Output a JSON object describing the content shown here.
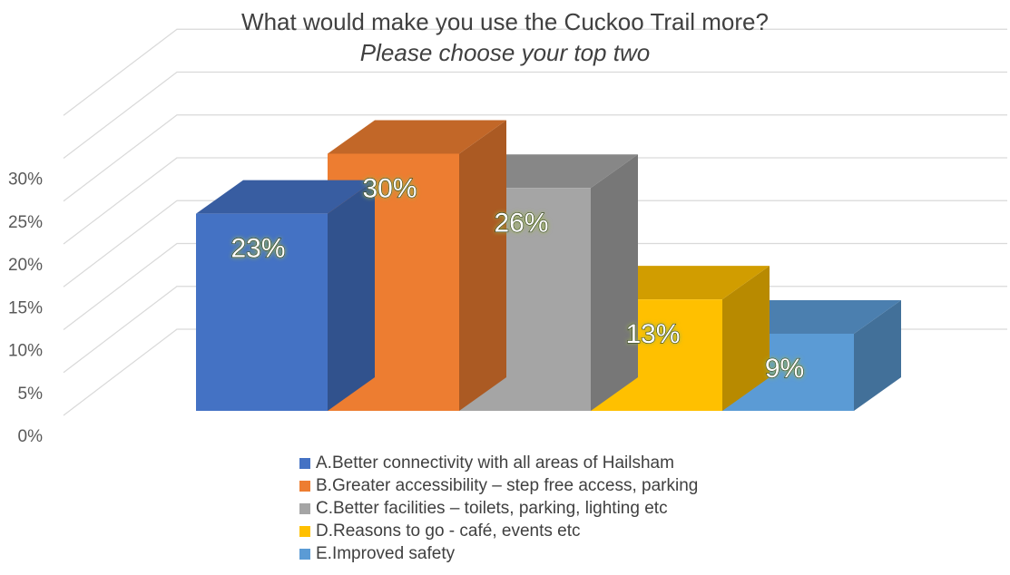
{
  "chart_data": {
    "type": "bar",
    "title": "What would make you use the Cuckoo Trail more?",
    "subtitle": "Please choose your top two",
    "categories": [
      "A.Better connectivity with all areas of Hailsham",
      "B.Greater accessibility – step free access, parking",
      "C.Better facilities – toilets, parking, lighting etc",
      "D.Reasons to go - café, events etc",
      "E.Improved safety"
    ],
    "values": [
      23,
      30,
      26,
      13,
      9
    ],
    "data_labels": [
      "23%",
      "30%",
      "26%",
      "13%",
      "9%"
    ],
    "colors": [
      "#4472C4",
      "#ED7D31",
      "#A5A5A5",
      "#FFC000",
      "#5B9BD5"
    ],
    "ylim": [
      0,
      35
    ],
    "yticks": [
      0,
      5,
      10,
      15,
      20,
      25,
      30
    ],
    "ytick_labels": [
      "0%",
      "5%",
      "10%",
      "15%",
      "20%",
      "25%",
      "30%"
    ],
    "grid": true,
    "style": "3d",
    "legend_position": "bottom"
  }
}
